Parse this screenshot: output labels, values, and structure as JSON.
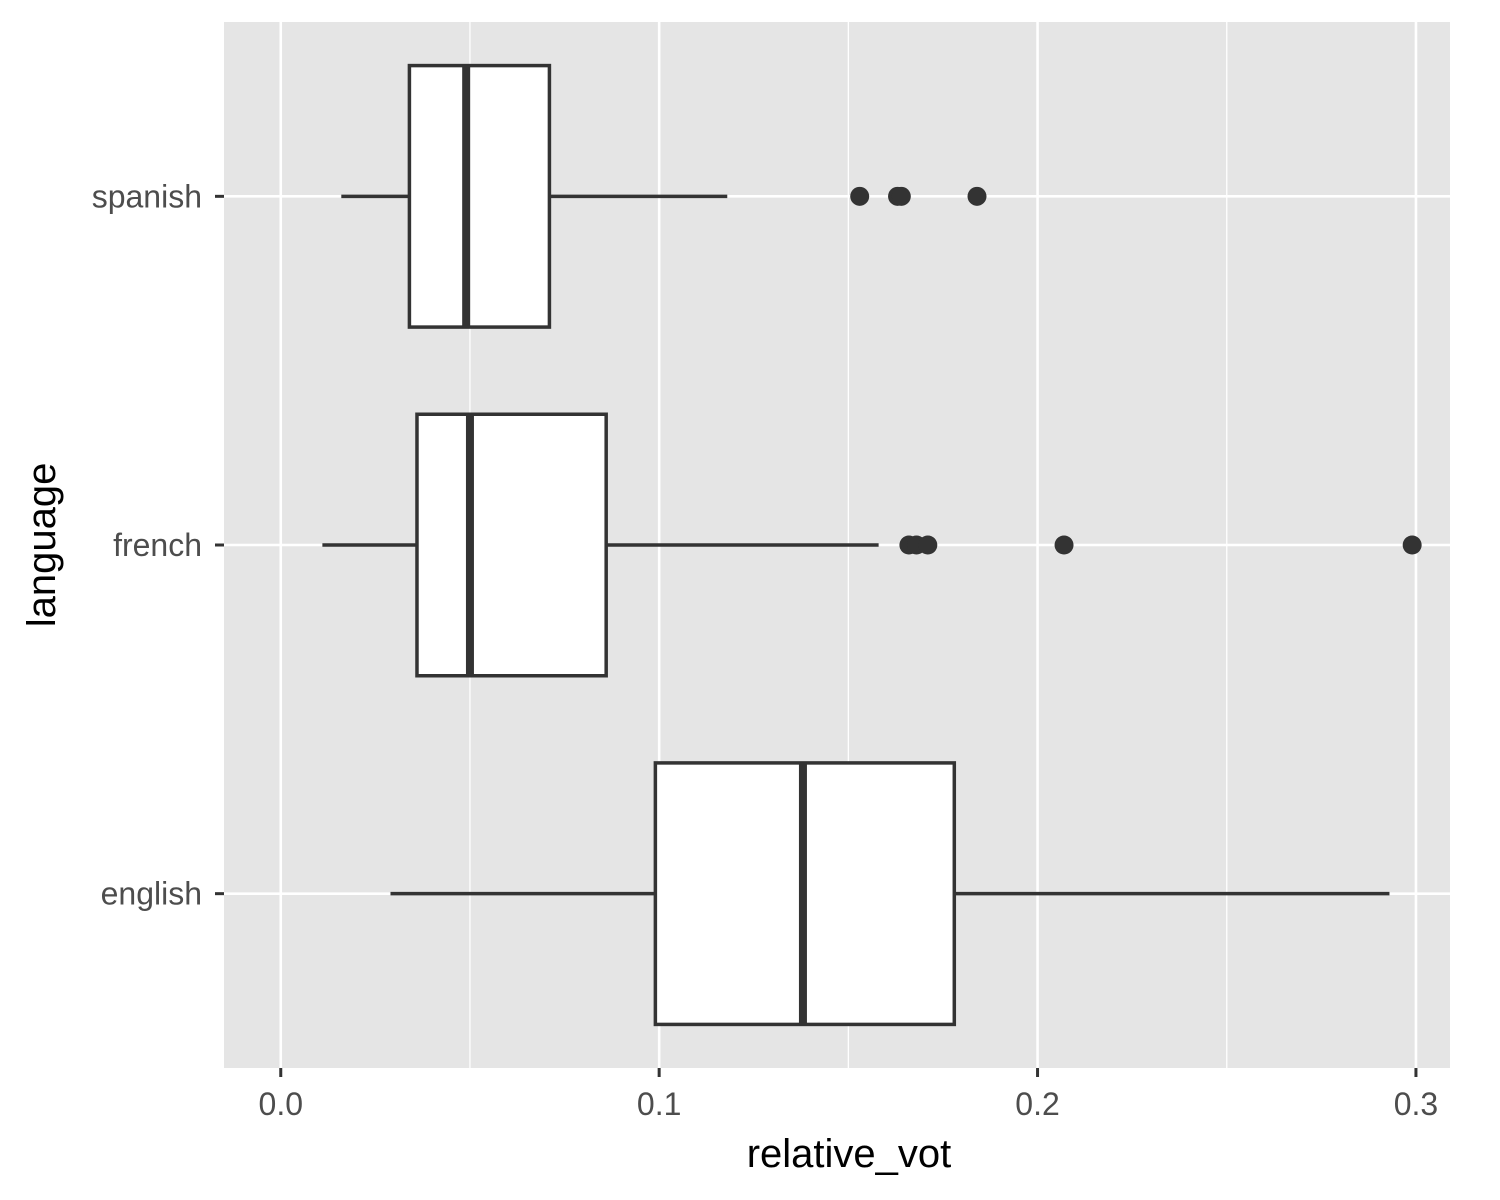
{
  "chart_data": {
    "type": "boxplot",
    "orientation": "horizontal",
    "xlabel": "relative_vot",
    "ylabel": "language",
    "xlim": [
      -0.015,
      0.309
    ],
    "x_ticks": [
      {
        "value": 0.0,
        "label": "0.0"
      },
      {
        "value": 0.1,
        "label": "0.1"
      },
      {
        "value": 0.2,
        "label": "0.2"
      },
      {
        "value": 0.3,
        "label": "0.3"
      }
    ],
    "x_minor_ticks": [
      0.05,
      0.15,
      0.25
    ],
    "categories": [
      "spanish",
      "french",
      "english"
    ],
    "boxes": [
      {
        "category": "spanish",
        "whisker_low": 0.016,
        "q1": 0.034,
        "median": 0.049,
        "q3": 0.071,
        "whisker_high": 0.118,
        "outliers": [
          0.153,
          0.163,
          0.164,
          0.184
        ]
      },
      {
        "category": "french",
        "whisker_low": 0.011,
        "q1": 0.036,
        "median": 0.05,
        "q3": 0.086,
        "whisker_high": 0.158,
        "outliers": [
          0.166,
          0.168,
          0.171,
          0.207,
          0.299
        ]
      },
      {
        "category": "english",
        "whisker_low": 0.029,
        "q1": 0.099,
        "median": 0.138,
        "q3": 0.178,
        "whisker_high": 0.293,
        "outliers": []
      }
    ],
    "grid": true,
    "legend": "none",
    "colors": {
      "panel_background": "#e5e5e5",
      "grid_major": "#ffffff",
      "box_fill": "#ffffff",
      "box_stroke": "#333333",
      "outlier": "#333333",
      "tick": "#333333",
      "tick_label": "#4d4d4d",
      "axis_title": "#000000"
    }
  }
}
